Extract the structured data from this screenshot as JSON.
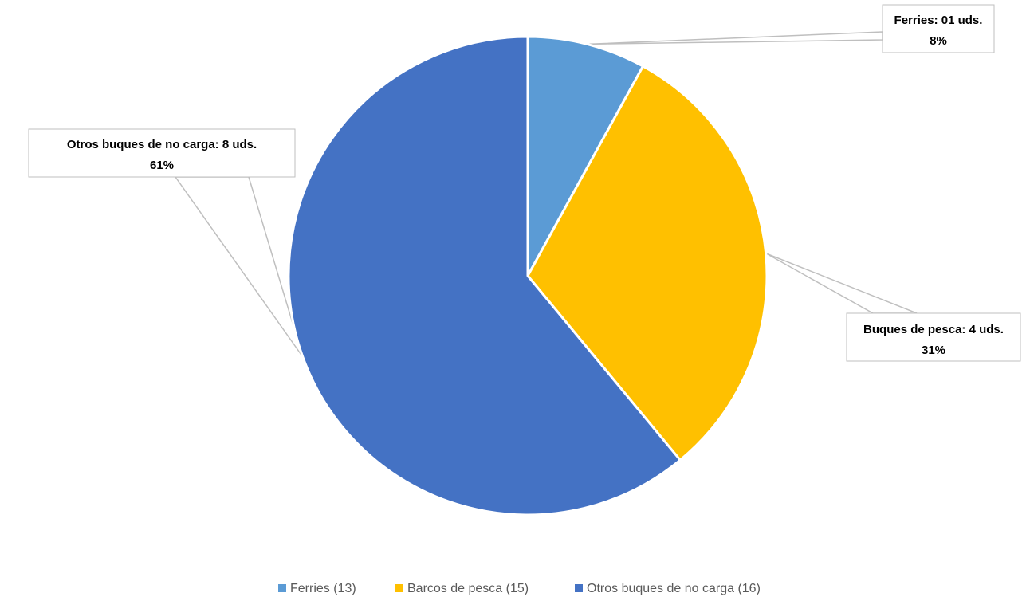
{
  "chart_data": {
    "type": "pie",
    "title": "",
    "slices": [
      {
        "label": "Ferries: 01 uds.",
        "percent_label": "8%",
        "value": 8,
        "legend": "Ferries (13)",
        "color": "#5B9BD5"
      },
      {
        "label": "Buques de pesca: 4 uds.",
        "percent_label": "31%",
        "value": 31,
        "legend": "Barcos de pesca (15)",
        "color": "#FFC000"
      },
      {
        "label": "Otros buques de no carga: 8 uds.",
        "percent_label": "61%",
        "value": 61,
        "legend": "Otros buques de no carga (16)",
        "color": "#4472C4"
      }
    ],
    "start_angle_deg": 0,
    "direction": "clockwise",
    "legend_position": "bottom"
  }
}
